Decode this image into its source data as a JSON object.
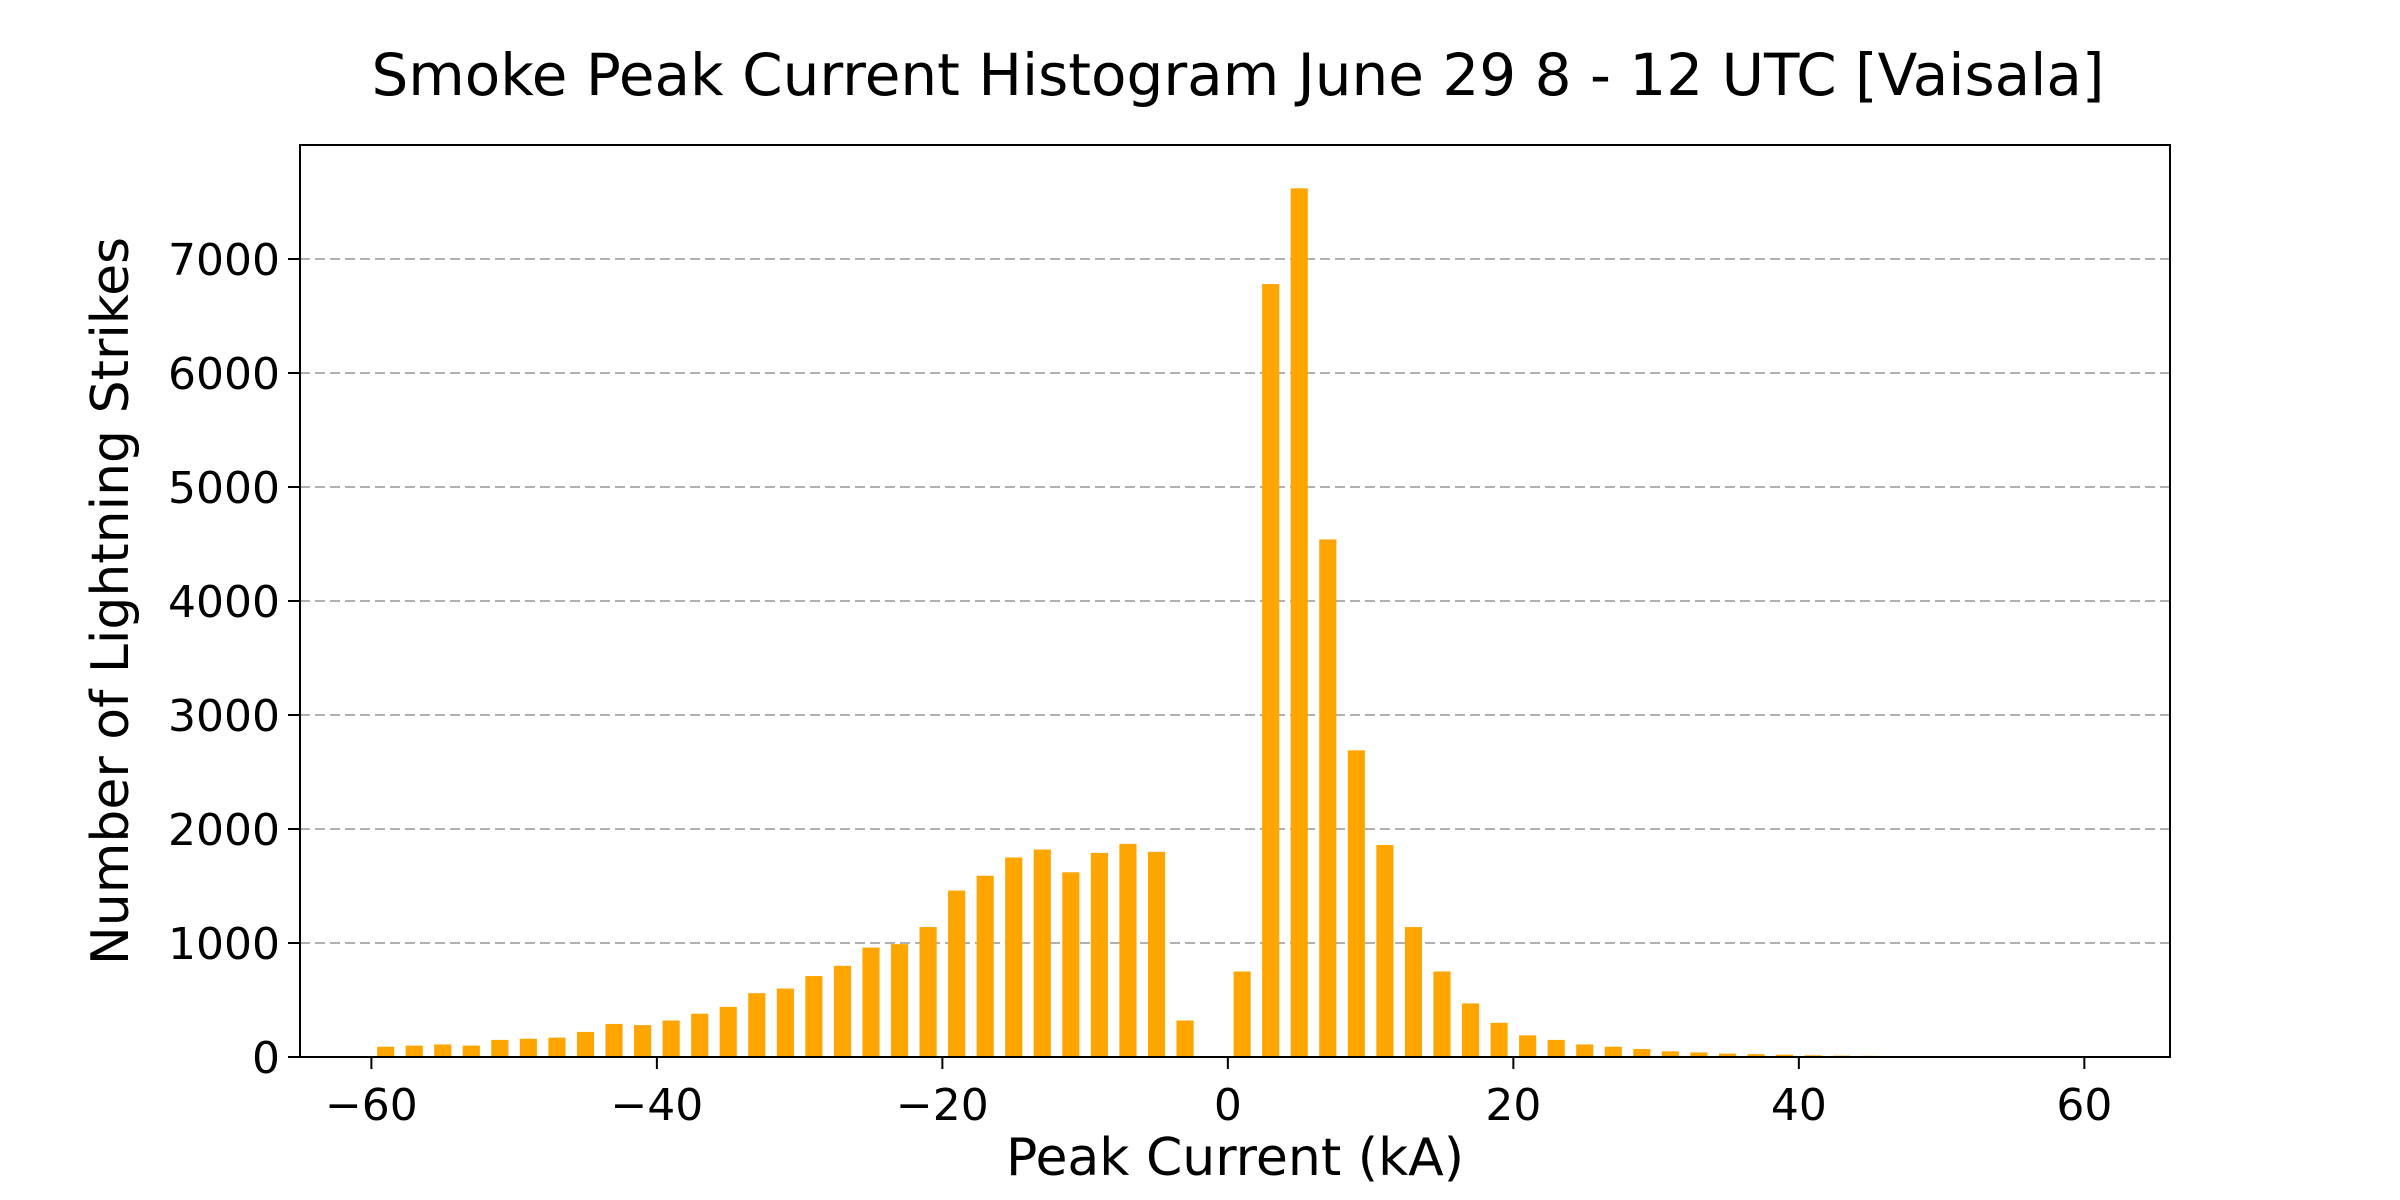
{
  "chart_data": {
    "type": "bar",
    "title": "Smoke Peak Current Histogram June 29 8 - 12 UTC [Vaisala]",
    "xlabel": "Peak Current (kA)",
    "ylabel": "Number of Lightning Strikes",
    "xlim": [
      -65,
      66
    ],
    "ylim": [
      0,
      8000
    ],
    "bar_width": 1.2,
    "color": "#FFA500",
    "grid": "y-dashed",
    "x_ticks": [
      -60,
      -40,
      -20,
      0,
      20,
      40,
      60
    ],
    "x_tick_labels": [
      "−60",
      "−40",
      "−20",
      "0",
      "20",
      "40",
      "60"
    ],
    "y_ticks": [
      0,
      1000,
      2000,
      3000,
      4000,
      5000,
      6000,
      7000
    ],
    "y_tick_labels": [
      "0",
      "1000",
      "2000",
      "3000",
      "4000",
      "5000",
      "6000",
      "7000"
    ],
    "x": [
      -59,
      -57,
      -55,
      -53,
      -51,
      -49,
      -47,
      -45,
      -43,
      -41,
      -39,
      -37,
      -35,
      -33,
      -31,
      -29,
      -27,
      -25,
      -23,
      -21,
      -19,
      -17,
      -15,
      -13,
      -11,
      -9,
      -7,
      -5,
      -3,
      -1,
      1,
      3,
      5,
      7,
      9,
      11,
      13,
      15,
      17,
      19,
      21,
      23,
      25,
      27,
      29,
      31,
      33,
      35,
      37,
      39,
      41,
      43,
      45,
      47,
      49,
      51,
      53,
      55,
      57,
      59
    ],
    "values": [
      90,
      100,
      110,
      100,
      150,
      160,
      170,
      220,
      290,
      280,
      320,
      380,
      440,
      560,
      600,
      710,
      800,
      960,
      990,
      1140,
      1460,
      1590,
      1750,
      1820,
      1620,
      1790,
      1870,
      1800,
      320,
      0,
      750,
      6780,
      7620,
      4540,
      2690,
      1860,
      1140,
      750,
      470,
      300,
      190,
      150,
      110,
      90,
      70,
      50,
      40,
      30,
      25,
      20,
      15,
      12,
      10,
      7,
      5,
      3,
      2,
      2,
      1,
      0
    ]
  }
}
